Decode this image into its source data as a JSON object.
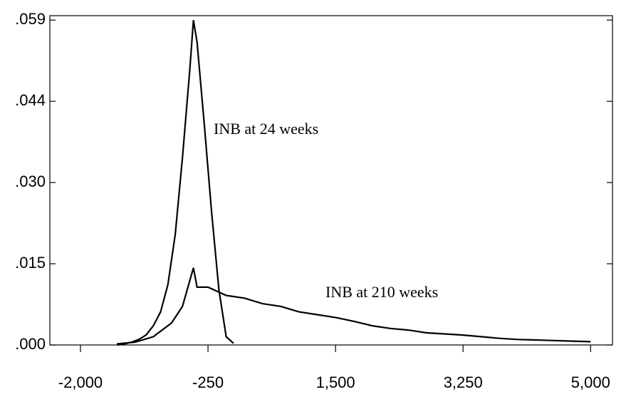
{
  "chart_data": {
    "type": "line",
    "xlim": [
      -2420,
      5300
    ],
    "xticks": [
      {
        "value": -2000,
        "label": "-2,000"
      },
      -250,
      {
        "value": 1500,
        "label": "1,500"
      },
      {
        "value": 3250,
        "label": "3,250"
      },
      {
        "value": 5000,
        "label": "5,000"
      }
    ],
    "ylim": [
      0,
      0.0598
    ],
    "yticks": [
      {
        "value": 0,
        "label": ".000"
      },
      {
        "value": 0.01475,
        "label": ".015"
      },
      {
        "value": 0.0295,
        "label": ".030"
      },
      {
        "value": 0.04425,
        "label": ".044"
      },
      {
        "value": 0.059,
        "label": ".059"
      }
    ],
    "series": [
      {
        "name": "INB at 24 weeks",
        "color": "#000000",
        "x": [
          -1500,
          -1400,
          -1300,
          -1200,
          -1100,
          -1000,
          -900,
          -800,
          -700,
          -600,
          -500,
          -450,
          -400,
          -300,
          -200,
          -100,
          0,
          100
        ],
        "values": [
          0,
          0.0002,
          0.0005,
          0.001,
          0.0018,
          0.0035,
          0.006,
          0.011,
          0.02,
          0.034,
          0.05,
          0.059,
          0.055,
          0.04,
          0.024,
          0.01,
          0.0015,
          0.0003
        ]
      },
      {
        "name": "INB at 210 weeks",
        "color": "#000000",
        "x": [
          -1500,
          -1250,
          -1000,
          -750,
          -600,
          -450,
          -400,
          -250,
          0,
          250,
          500,
          750,
          1000,
          1250,
          1500,
          1750,
          2000,
          2250,
          2500,
          2750,
          3000,
          3250,
          3500,
          3750,
          4000,
          4250,
          4500,
          4750,
          5000
        ],
        "values": [
          0.0002,
          0.0005,
          0.0015,
          0.004,
          0.007,
          0.014,
          0.0105,
          0.0105,
          0.009,
          0.0085,
          0.0075,
          0.007,
          0.006,
          0.0055,
          0.005,
          0.0043,
          0.0035,
          0.003,
          0.0027,
          0.0022,
          0.002,
          0.0018,
          0.0015,
          0.0012,
          0.001,
          0.0009,
          0.0008,
          0.0007,
          0.0006
        ]
      }
    ]
  }
}
